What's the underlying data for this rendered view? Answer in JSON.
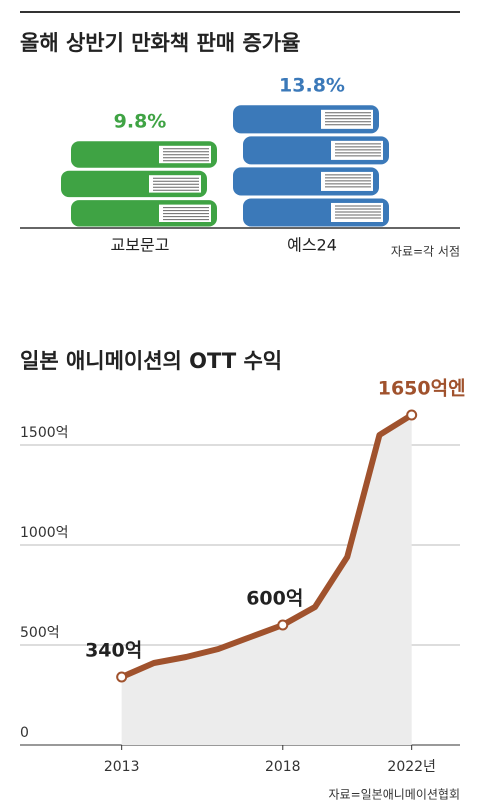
{
  "charts": [
    {
      "type": "bar",
      "title": "올해 상반기 만화책 판매 증가율",
      "categories": [
        "교보문고",
        "예스24"
      ],
      "values": [
        9.8,
        13.8
      ],
      "value_labels": [
        "9.8%",
        "13.8%"
      ],
      "colors": [
        "#3fa344",
        "#3b79b9"
      ],
      "label_color": [
        "#3fa344",
        "#3b79b9"
      ],
      "source": "자료=각 서점"
    },
    {
      "type": "line",
      "title": "일본 애니메이션의 OTT 수익",
      "x": [
        2013,
        2014,
        2015,
        2016,
        2017,
        2018,
        2019,
        2020,
        2021,
        2022
      ],
      "series": [
        {
          "color": "#a0522d",
          "values": [
            340,
            410,
            440,
            480,
            540,
            600,
            690,
            940,
            1550,
            1650
          ],
          "value_labels": [
            "340억",
            null,
            null,
            null,
            null,
            "600억",
            null,
            null,
            null,
            "1650억엔"
          ]
        }
      ],
      "xlim": [
        2010,
        2023.5
      ],
      "xticks": [
        2013,
        2018,
        {
          "value": 2022,
          "label": "2022년"
        }
      ],
      "ylim": [
        0,
        1700
      ],
      "yticks": [
        0,
        {
          "value": 500,
          "label": "500억"
        },
        {
          "value": 1000,
          "label": "1000억"
        },
        {
          "value": 1500,
          "label": "1500억"
        }
      ],
      "grid": true,
      "source": "자료=일본애니메이션협회"
    }
  ]
}
